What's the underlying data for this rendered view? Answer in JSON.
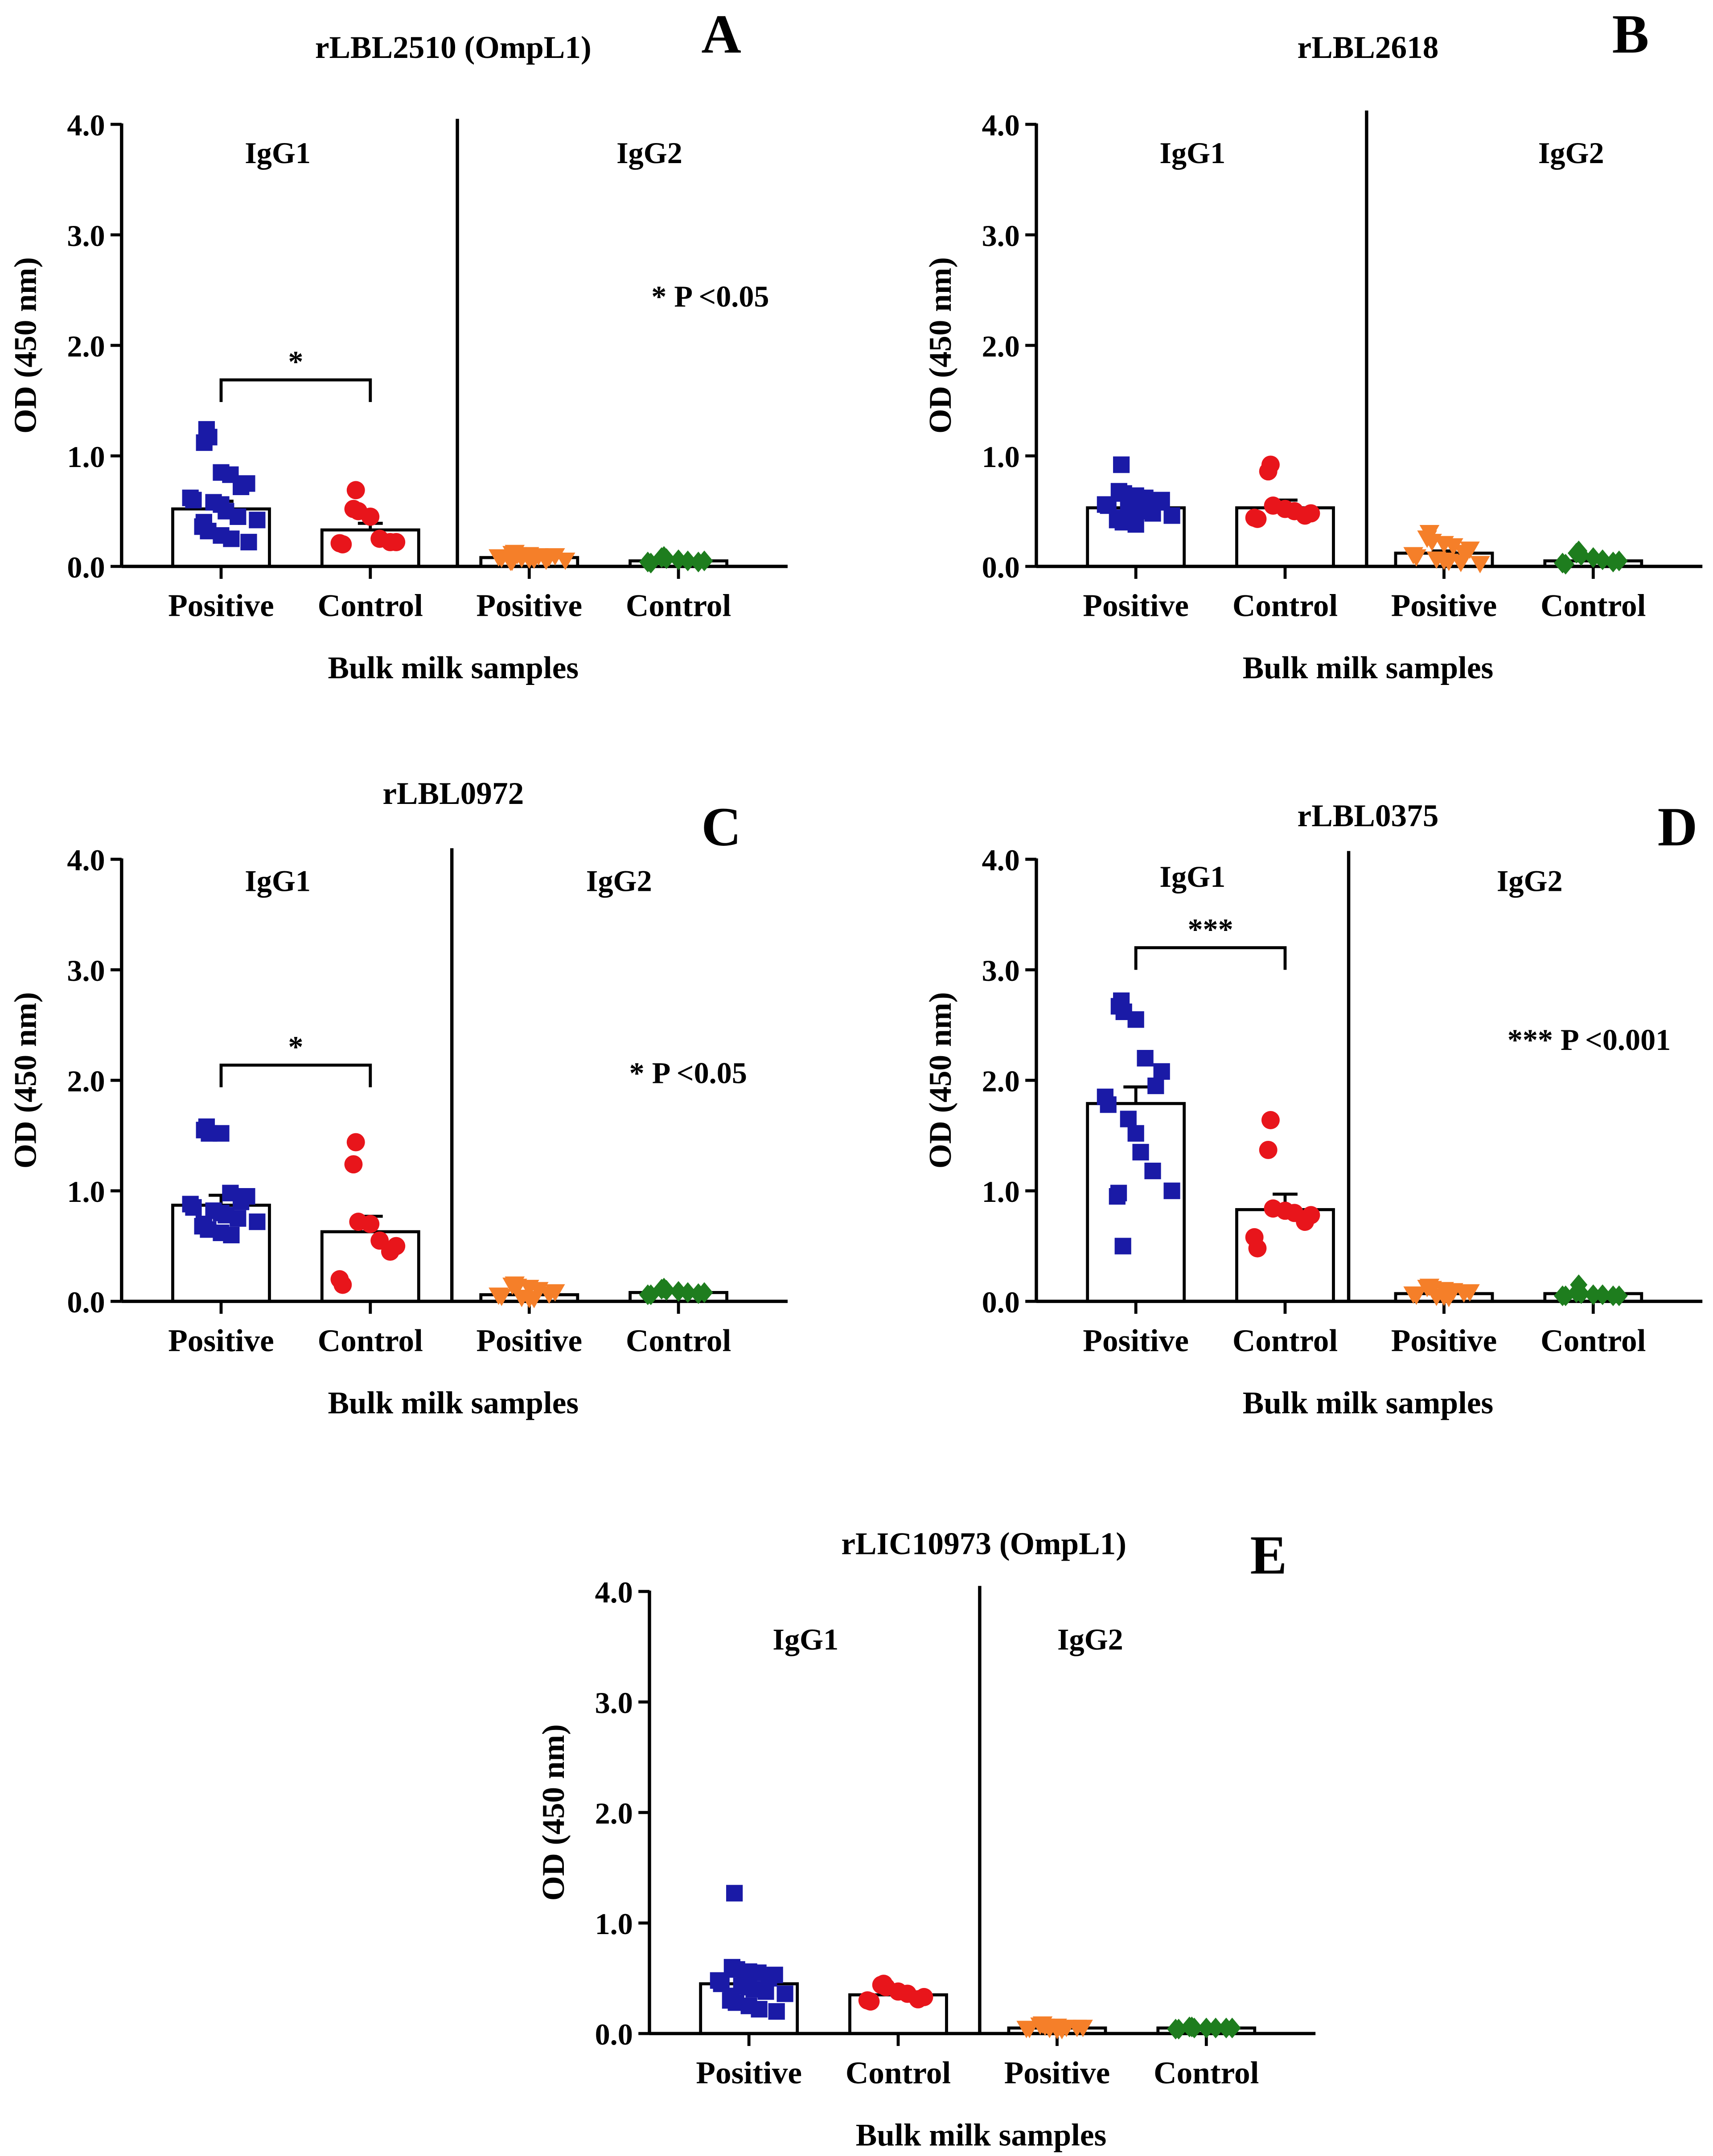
{
  "figure": {
    "xlabel": "Bulk milk samples",
    "ylabel": "OD (450 nm)",
    "tick_labels": [
      "0.0",
      "1.0",
      "2.0",
      "3.0",
      "4.0"
    ],
    "group_labels": [
      "IgG1",
      "IgG2"
    ],
    "category_labels": [
      "Positive",
      "Control",
      "Positive",
      "Control"
    ]
  },
  "colors": {
    "igg1_positive": "#1a1aa6",
    "igg1_control": "#e8151b",
    "igg2_positive": "#f57f29",
    "igg2_control": "#1e7d1e"
  },
  "chart_data": [
    {
      "panel": "A",
      "title": "rLBL2510 (OmpL1)",
      "type": "bar",
      "xlabel": "Bulk milk samples",
      "ylabel": "OD (450 nm)",
      "ylim": [
        0,
        4
      ],
      "significance": "*",
      "pvalue_note": "* P <0.05",
      "series": [
        {
          "name": "IgG1 Positive",
          "marker": "square",
          "mean": 0.52,
          "sem": 0.07,
          "values": [
            1.24,
            1.12,
            1.17,
            0.85,
            0.83,
            0.75,
            0.72,
            0.62,
            0.6,
            0.58,
            0.56,
            0.5,
            0.45,
            0.42,
            0.4,
            0.36,
            0.32,
            0.28,
            0.25,
            0.22
          ]
        },
        {
          "name": "IgG1 Control",
          "marker": "circle",
          "mean": 0.33,
          "sem": 0.06,
          "values": [
            0.69,
            0.52,
            0.5,
            0.45,
            0.25,
            0.22,
            0.22,
            0.21,
            0.2
          ]
        },
        {
          "name": "IgG2 Positive",
          "marker": "triangle-down",
          "mean": 0.08,
          "sem": 0.01,
          "values": [
            0.12,
            0.11,
            0.1,
            0.1,
            0.09,
            0.09,
            0.08,
            0.08,
            0.07,
            0.07,
            0.06,
            0.06,
            0.05,
            0.05,
            0.04,
            0.04
          ]
        },
        {
          "name": "IgG2 Control",
          "marker": "diamond",
          "mean": 0.05,
          "sem": 0.01,
          "values": [
            0.09,
            0.08,
            0.07,
            0.06,
            0.05,
            0.05,
            0.04,
            0.04,
            0.03
          ]
        }
      ]
    },
    {
      "panel": "B",
      "title": "rLBL2618",
      "type": "bar",
      "xlabel": "Bulk milk samples",
      "ylabel": "OD (450 nm)",
      "ylim": [
        0,
        4
      ],
      "significance": "",
      "pvalue_note": "",
      "series": [
        {
          "name": "IgG1 Positive",
          "marker": "square",
          "mean": 0.53,
          "sem": 0.04,
          "values": [
            0.92,
            0.68,
            0.66,
            0.64,
            0.62,
            0.6,
            0.58,
            0.56,
            0.55,
            0.53,
            0.52,
            0.5,
            0.48,
            0.46,
            0.44,
            0.42,
            0.4,
            0.38
          ]
        },
        {
          "name": "IgG1 Control",
          "marker": "circle",
          "mean": 0.53,
          "sem": 0.07,
          "values": [
            0.92,
            0.86,
            0.55,
            0.52,
            0.5,
            0.48,
            0.46,
            0.44,
            0.43
          ]
        },
        {
          "name": "IgG2 Positive",
          "marker": "triangle-down",
          "mean": 0.12,
          "sem": 0.02,
          "values": [
            0.3,
            0.25,
            0.22,
            0.2,
            0.18,
            0.15,
            0.12,
            0.1,
            0.08,
            0.06,
            0.05,
            0.04,
            0.03,
            0.02
          ]
        },
        {
          "name": "IgG2 Control",
          "marker": "diamond",
          "mean": 0.05,
          "sem": 0.01,
          "values": [
            0.14,
            0.12,
            0.1,
            0.08,
            0.06,
            0.05,
            0.04,
            0.03,
            0.02
          ]
        }
      ]
    },
    {
      "panel": "C",
      "title": "rLBL0972",
      "type": "bar",
      "xlabel": "Bulk milk samples",
      "ylabel": "OD (450 nm)",
      "ylim": [
        0,
        4
      ],
      "significance": "*",
      "pvalue_note": "* P <0.05",
      "series": [
        {
          "name": "IgG1 Positive",
          "marker": "square",
          "mean": 0.87,
          "sem": 0.09,
          "values": [
            1.58,
            1.55,
            1.52,
            1.52,
            0.98,
            0.95,
            0.9,
            0.88,
            0.85,
            0.82,
            0.8,
            0.78,
            0.75,
            0.72,
            0.7,
            0.68,
            0.65,
            0.62,
            0.6
          ]
        },
        {
          "name": "IgG1 Control",
          "marker": "circle",
          "mean": 0.63,
          "sem": 0.14,
          "values": [
            1.44,
            1.24,
            0.72,
            0.7,
            0.55,
            0.5,
            0.45,
            0.2,
            0.15
          ]
        },
        {
          "name": "IgG2 Positive",
          "marker": "triangle-down",
          "mean": 0.06,
          "sem": 0.01,
          "values": [
            0.15,
            0.14,
            0.13,
            0.12,
            0.1,
            0.08,
            0.06,
            0.05,
            0.04,
            0.03,
            0.02,
            0.02
          ]
        },
        {
          "name": "IgG2 Control",
          "marker": "diamond",
          "mean": 0.08,
          "sem": 0.01,
          "values": [
            0.12,
            0.11,
            0.1,
            0.09,
            0.08,
            0.08,
            0.07,
            0.06,
            0.06
          ]
        }
      ]
    },
    {
      "panel": "D",
      "title": "rLBL0375",
      "type": "bar",
      "xlabel": "Bulk milk samples",
      "ylabel": "OD (450 nm)",
      "ylim": [
        0,
        4
      ],
      "significance": "***",
      "pvalue_note": "*** P <0.001",
      "series": [
        {
          "name": "IgG1 Positive",
          "marker": "square",
          "mean": 1.79,
          "sem": 0.15,
          "values": [
            2.72,
            2.67,
            2.62,
            2.55,
            2.2,
            2.08,
            1.95,
            1.85,
            1.78,
            1.65,
            1.52,
            1.35,
            1.18,
            1.0,
            0.98,
            0.95,
            0.5
          ]
        },
        {
          "name": "IgG1 Control",
          "marker": "circle",
          "mean": 0.83,
          "sem": 0.14,
          "values": [
            1.64,
            1.37,
            0.84,
            0.82,
            0.8,
            0.78,
            0.72,
            0.58,
            0.48
          ]
        },
        {
          "name": "IgG2 Positive",
          "marker": "triangle-down",
          "mean": 0.07,
          "sem": 0.01,
          "values": [
            0.13,
            0.12,
            0.11,
            0.1,
            0.09,
            0.08,
            0.07,
            0.06,
            0.05,
            0.04,
            0.04,
            0.03
          ]
        },
        {
          "name": "IgG2 Control",
          "marker": "diamond",
          "mean": 0.07,
          "sem": 0.01,
          "values": [
            0.15,
            0.08,
            0.07,
            0.06,
            0.06,
            0.05,
            0.05,
            0.05,
            0.05
          ]
        }
      ]
    },
    {
      "panel": "E",
      "title": "rLIC10973 (OmpL1)",
      "type": "bar",
      "xlabel": "Bulk milk samples",
      "ylabel": "OD (450 nm)",
      "ylim": [
        0,
        4
      ],
      "significance": "",
      "pvalue_note": "",
      "series": [
        {
          "name": "IgG1 Positive",
          "marker": "square",
          "mean": 0.45,
          "sem": 0.05,
          "values": [
            1.27,
            0.6,
            0.58,
            0.56,
            0.55,
            0.53,
            0.5,
            0.48,
            0.45,
            0.43,
            0.42,
            0.4,
            0.38,
            0.36,
            0.34,
            0.3,
            0.28,
            0.25,
            0.22,
            0.2
          ]
        },
        {
          "name": "IgG1 Control",
          "marker": "circle",
          "mean": 0.35,
          "sem": 0.03,
          "values": [
            0.45,
            0.44,
            0.42,
            0.38,
            0.36,
            0.33,
            0.31,
            0.3,
            0.29
          ]
        },
        {
          "name": "IgG2 Positive",
          "marker": "triangle-down",
          "mean": 0.05,
          "sem": 0.01,
          "values": [
            0.08,
            0.07,
            0.06,
            0.06,
            0.05,
            0.05,
            0.05,
            0.04,
            0.04,
            0.04,
            0.03,
            0.03
          ]
        },
        {
          "name": "IgG2 Control",
          "marker": "diamond",
          "mean": 0.05,
          "sem": 0.01,
          "values": [
            0.06,
            0.06,
            0.05,
            0.05,
            0.05,
            0.05,
            0.05,
            0.04,
            0.04
          ]
        }
      ]
    }
  ]
}
